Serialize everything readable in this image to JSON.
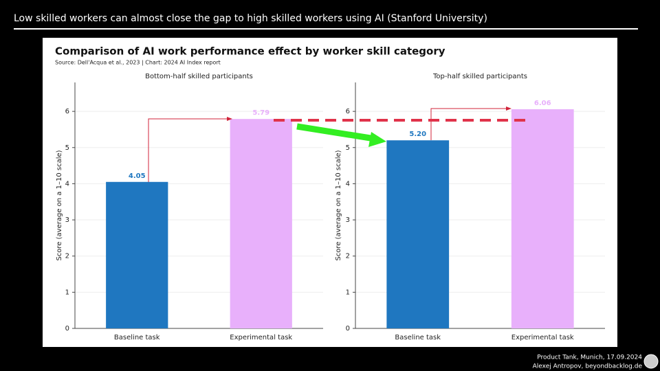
{
  "header": {
    "title": "Low skilled workers can almost close the gap to high skilled workers using AI (Stanford University)"
  },
  "figure": {
    "title": "Comparison of AI work performance effect by worker skill category",
    "source": "Source: Dell'Acqua et al., 2023 | Chart: 2024 AI Index report"
  },
  "chart_data": [
    {
      "type": "bar",
      "title": "Bottom-half skilled participants",
      "categories": [
        "Baseline task",
        "Experimental task"
      ],
      "values": [
        4.05,
        5.79
      ],
      "value_labels": [
        "4.05",
        "5.79"
      ],
      "colors": [
        "#1f77c0",
        "#e8b0fb"
      ],
      "ylabel": "Score (average on a 1–10 scale)",
      "ylim": [
        0,
        6.8
      ],
      "yticks": [
        0,
        1,
        2,
        3,
        4,
        5,
        6
      ],
      "grid": true
    },
    {
      "type": "bar",
      "title": "Top-half skilled participants",
      "categories": [
        "Baseline task",
        "Experimental task"
      ],
      "values": [
        5.2,
        6.06
      ],
      "value_labels": [
        "5.20",
        "6.06"
      ],
      "colors": [
        "#1f77c0",
        "#e8b0fb"
      ],
      "ylabel": "Score (average on a 1–10 scale)",
      "ylim": [
        0,
        6.8
      ],
      "yticks": [
        0,
        1,
        2,
        3,
        4,
        5,
        6
      ],
      "grid": true
    }
  ],
  "footer": {
    "line1": "Product Tank, Munich, 17.09.2024",
    "line2": "Alexej Antropov, beyondbacklog.de"
  }
}
